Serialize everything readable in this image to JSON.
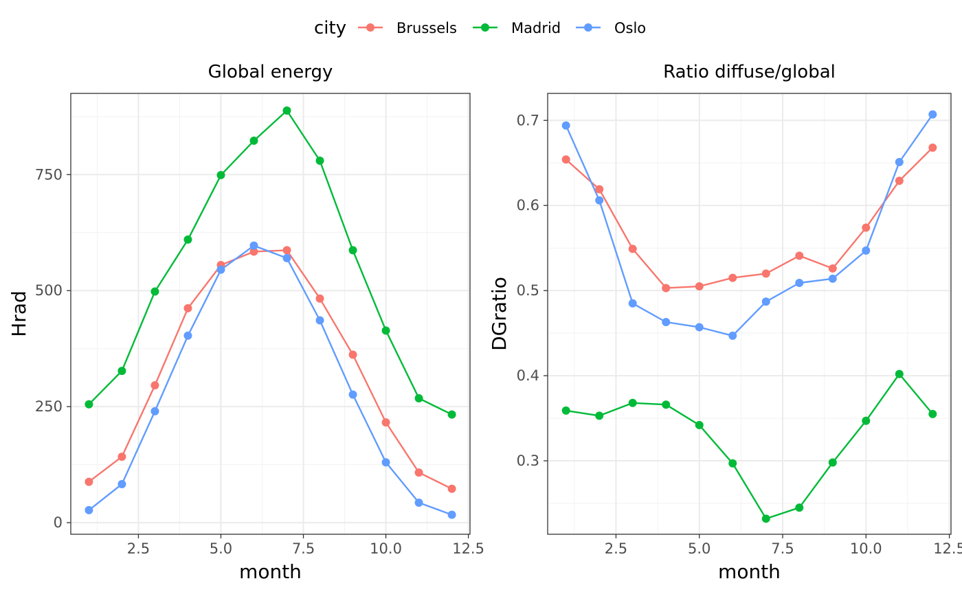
{
  "legend": {
    "title": "city",
    "entries": [
      {
        "name": "Brussels",
        "color": "#F8766D"
      },
      {
        "name": "Madrid",
        "color": "#00BA38"
      },
      {
        "name": "Oslo",
        "color": "#619CFF"
      }
    ]
  },
  "chart_data": [
    {
      "type": "line",
      "title": "Global energy",
      "xlabel": "month",
      "ylabel": "Hrad",
      "xlim": [
        0.45,
        12.55
      ],
      "ylim": [
        -25,
        925
      ],
      "xticks": [
        2.5,
        5.0,
        7.5,
        10.0,
        12.5
      ],
      "xtick_labels": [
        "2.5",
        "5.0",
        "7.5",
        "10.0",
        "12.5"
      ],
      "yticks": [
        0,
        250,
        500,
        750
      ],
      "ytick_labels": [
        "0",
        "250",
        "500",
        "750"
      ],
      "grid": true,
      "x": [
        1,
        2,
        3,
        4,
        5,
        6,
        7,
        8,
        9,
        10,
        11,
        12
      ],
      "series": [
        {
          "name": "Brussels",
          "color": "#F8766D",
          "values": [
            88,
            142,
            296,
            462,
            555,
            584,
            587,
            483,
            362,
            216,
            108,
            73
          ]
        },
        {
          "name": "Madrid",
          "color": "#00BA38",
          "values": [
            255,
            327,
            498,
            610,
            749,
            823,
            888,
            780,
            587,
            414,
            268,
            233
          ]
        },
        {
          "name": "Oslo",
          "color": "#619CFF",
          "values": [
            27,
            83,
            240,
            403,
            545,
            597,
            570,
            436,
            276,
            130,
            43,
            17
          ]
        }
      ]
    },
    {
      "type": "line",
      "title": "Ratio diffuse/global",
      "xlabel": "month",
      "ylabel": "DGratio",
      "xlim": [
        0.45,
        12.55
      ],
      "ylim": [
        0.2137,
        0.7317
      ],
      "xticks": [
        2.5,
        5.0,
        7.5,
        10.0,
        12.5
      ],
      "xtick_labels": [
        "2.5",
        "5.0",
        "7.5",
        "10.0",
        "12.5"
      ],
      "yticks": [
        0.3,
        0.4,
        0.5,
        0.6,
        0.7
      ],
      "ytick_labels": [
        "0.3",
        "0.4",
        "0.5",
        "0.6",
        "0.7"
      ],
      "grid": true,
      "x": [
        1,
        2,
        3,
        4,
        5,
        6,
        7,
        8,
        9,
        10,
        11,
        12
      ],
      "series": [
        {
          "name": "Brussels",
          "color": "#F8766D",
          "values": [
            0.654,
            0.619,
            0.549,
            0.503,
            0.505,
            0.515,
            0.52,
            0.541,
            0.526,
            0.574,
            0.629,
            0.668
          ]
        },
        {
          "name": "Madrid",
          "color": "#00BA38",
          "values": [
            0.359,
            0.353,
            0.368,
            0.366,
            0.342,
            0.297,
            0.232,
            0.245,
            0.298,
            0.347,
            0.402,
            0.355
          ]
        },
        {
          "name": "Oslo",
          "color": "#619CFF",
          "values": [
            0.694,
            0.606,
            0.485,
            0.463,
            0.457,
            0.447,
            0.487,
            0.509,
            0.514,
            0.547,
            0.651,
            0.707
          ]
        }
      ]
    }
  ]
}
